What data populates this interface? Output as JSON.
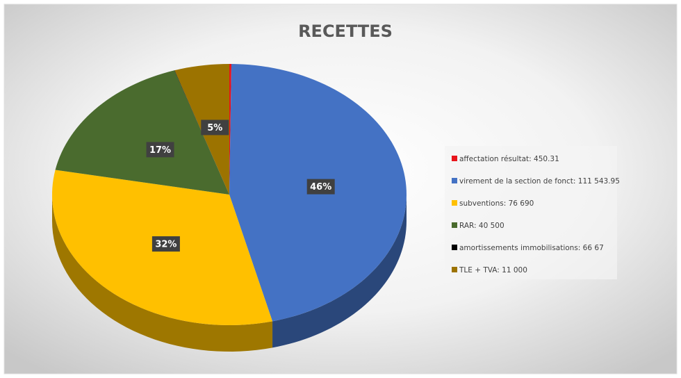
{
  "chart_data": {
    "type": "pie",
    "title": "RECETTES",
    "categories": [
      "affectation résultat: 450.31",
      "virement de la section de fonct: 111 543.95",
      "subventions: 76 690",
      "RAR: 40 500",
      "amortissements immobilisations: 66 67",
      "TLE + TVA: 11 000"
    ],
    "values": [
      0.19,
      46,
      32,
      17,
      0.03,
      5
    ],
    "value_labels": [
      null,
      "46%",
      "32%",
      "17%",
      null,
      "5%"
    ],
    "colors": [
      "#e8141b",
      "#4472c4",
      "#ffc000",
      "#4a6b2e",
      "#000000",
      "#9c7300"
    ],
    "legend": "right"
  }
}
